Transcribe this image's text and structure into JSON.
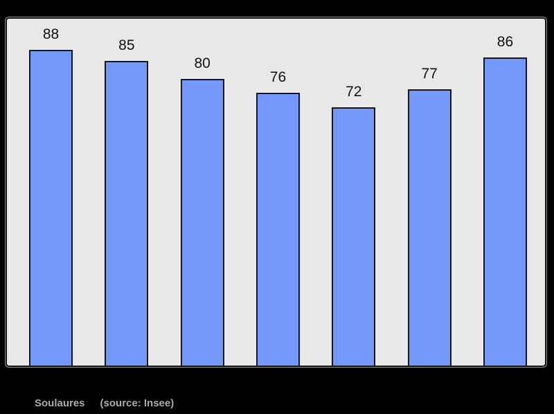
{
  "chart_data": {
    "type": "bar",
    "categories": [],
    "values": [
      88,
      85,
      80,
      76,
      72,
      77,
      86
    ],
    "title": "",
    "xlabel": "",
    "ylabel": "",
    "ylim": [
      0,
      97
    ],
    "grid": false,
    "legend": "none",
    "data_labels_shown": true
  },
  "caption": {
    "place": "Soulaures",
    "source": "(source: Insee)"
  },
  "colors": {
    "bg": "#000000",
    "plot-bg": "#e8e8e8",
    "plot-border": "#161616",
    "panel-outline": "#8f8f8f",
    "bar-fill": "#7397fa",
    "bar-border": "#161616",
    "value-label": "#111111",
    "caption-text": "#ababab"
  }
}
